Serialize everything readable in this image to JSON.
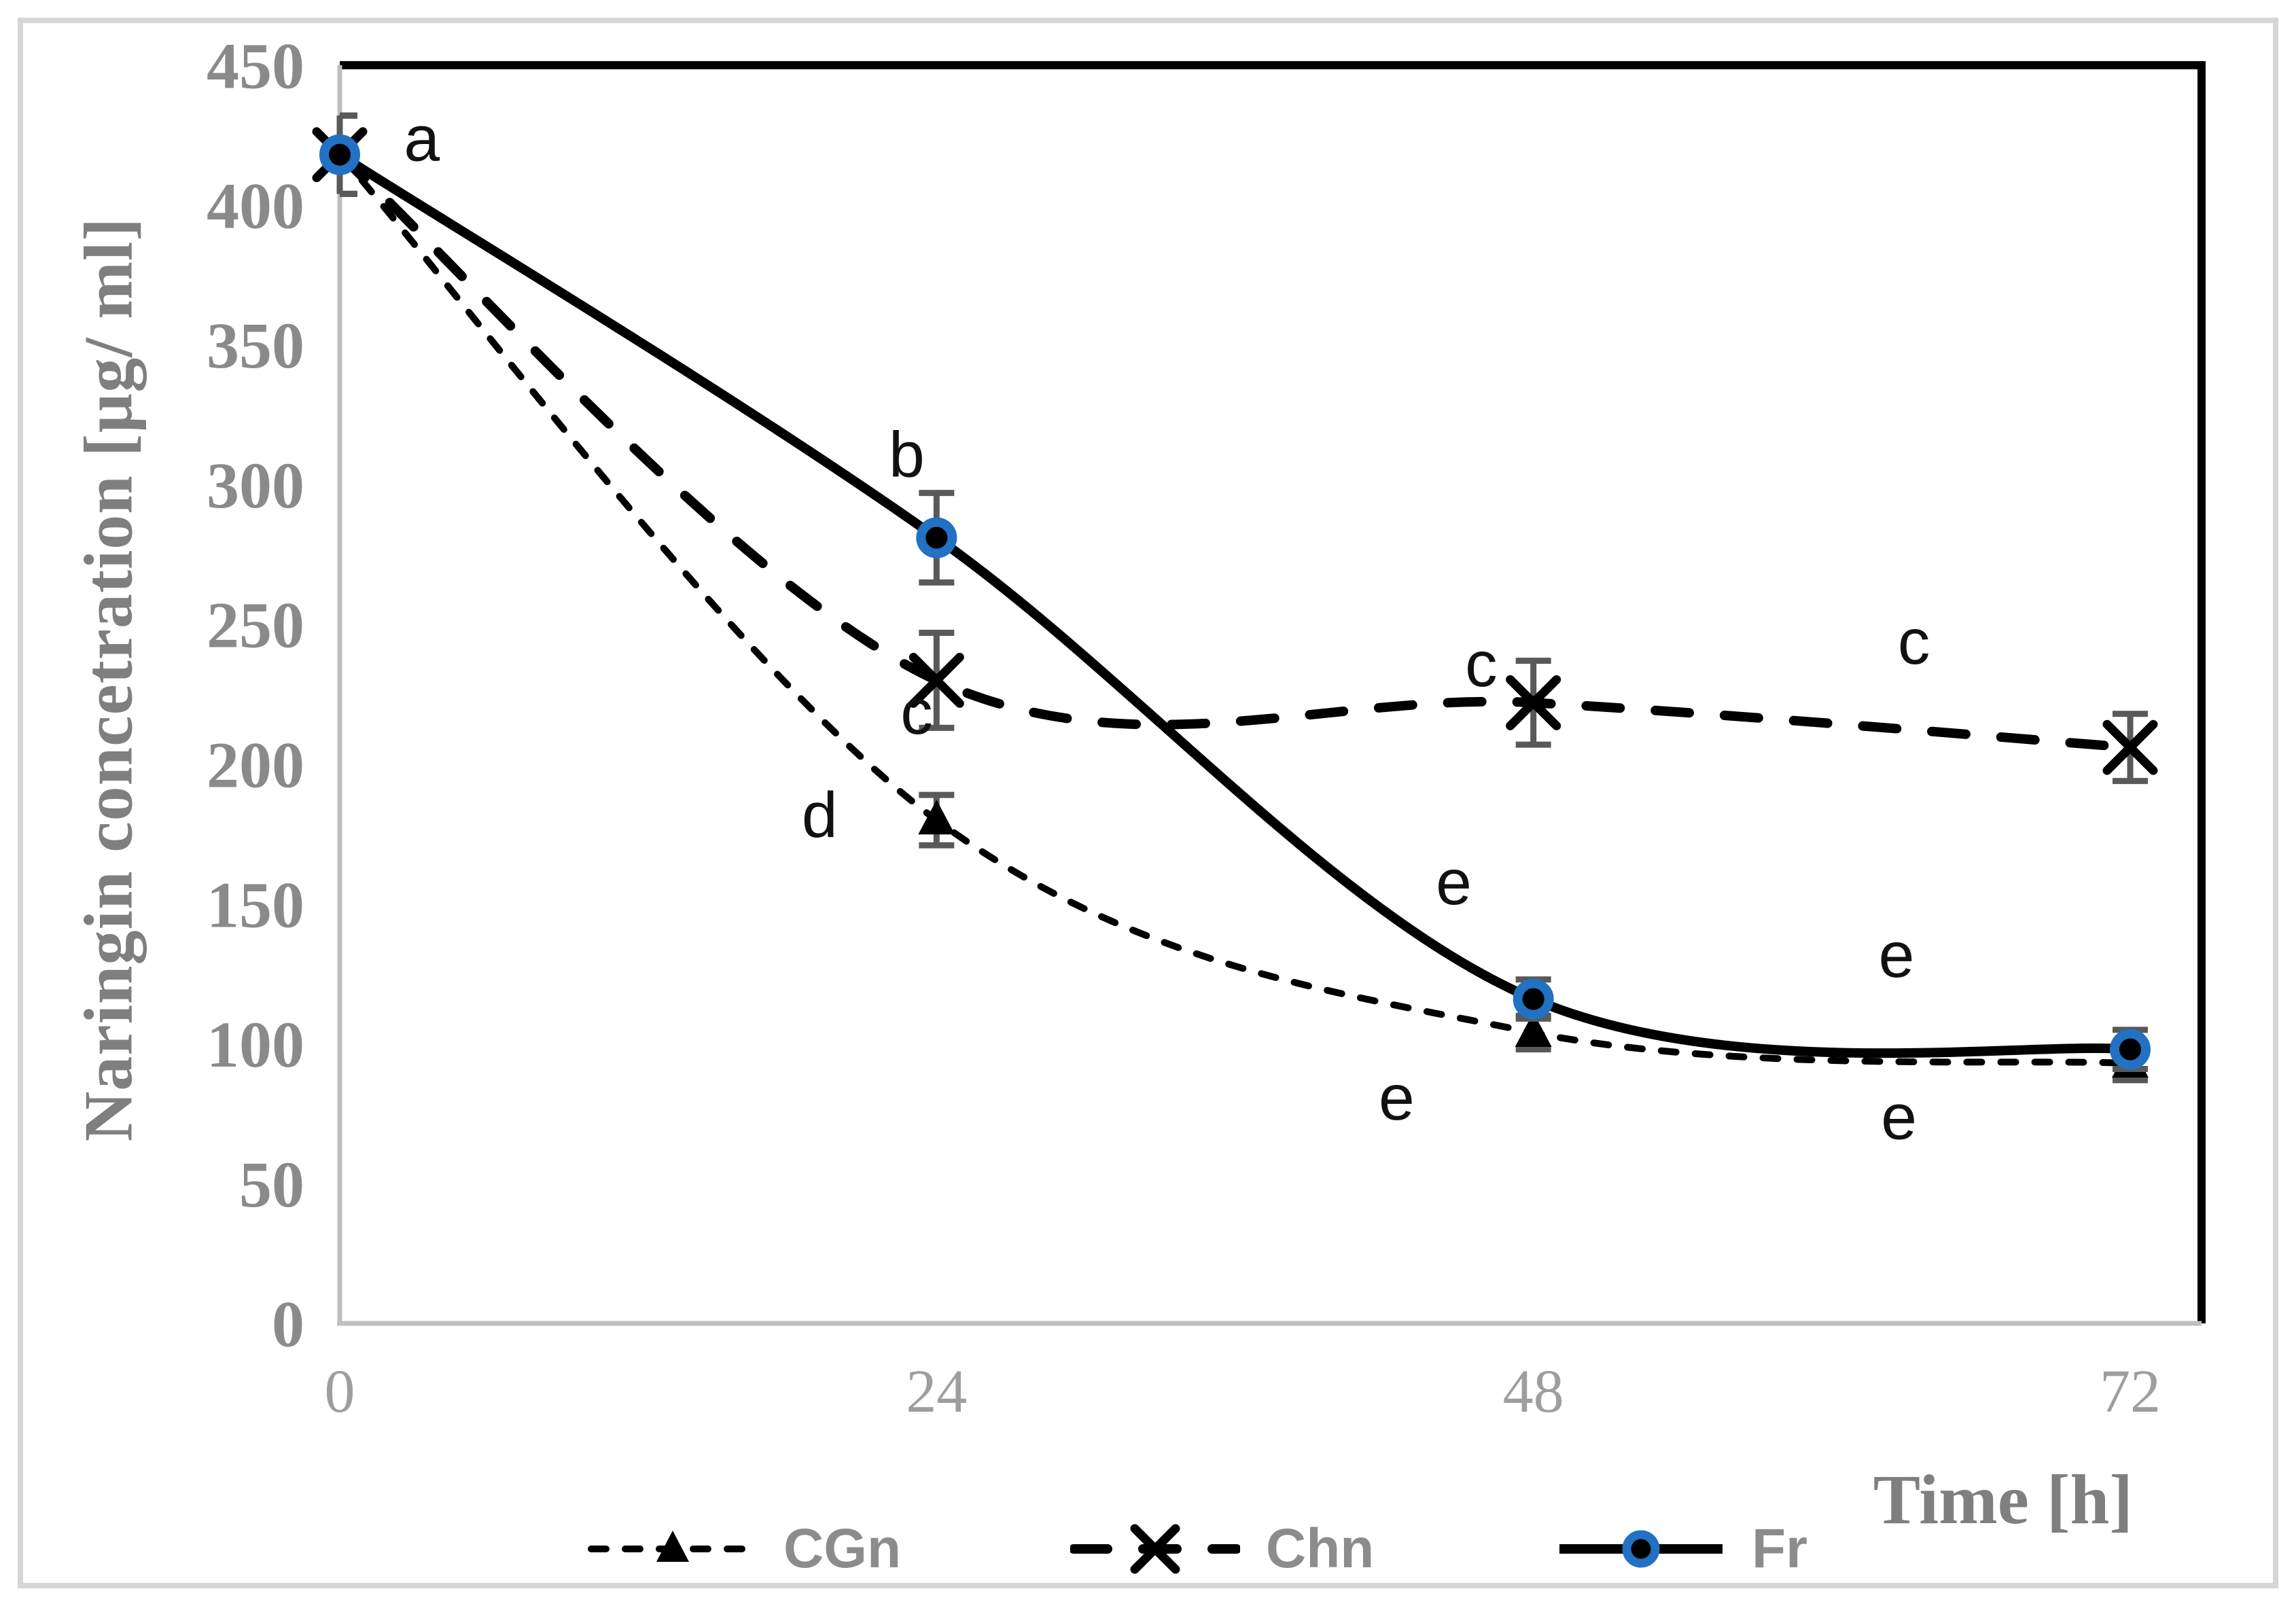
{
  "figure": {
    "background": "#ffffff",
    "outer_border_color": "#d6d6d6"
  },
  "chart_data": {
    "type": "line",
    "title": "",
    "xlabel": "Time [h]",
    "ylabel": "Naringin concetration [µg/ ml]",
    "x": [
      0,
      24,
      48,
      72
    ],
    "x_tick_labels": [
      "0",
      "24",
      "48",
      "72"
    ],
    "y_ticks": [
      0,
      50,
      100,
      150,
      200,
      250,
      300,
      350,
      400,
      450
    ],
    "ylim": [
      0,
      450
    ],
    "xlim": [
      0,
      75
    ],
    "grid": false,
    "legend_position": "bottom",
    "series": [
      {
        "name": "CGn",
        "values": [
          418,
          180,
          104,
          93
        ],
        "errors": [
          14,
          9,
          6,
          6
        ],
        "line_style": "dotted",
        "marker": "triangle",
        "color": "#000000"
      },
      {
        "name": "Chn",
        "values": [
          418,
          230,
          222,
          206
        ],
        "errors": [
          14,
          17,
          15,
          12
        ],
        "line_style": "dashed",
        "marker": "x",
        "color": "#000000"
      },
      {
        "name": "Fr",
        "values": [
          418,
          281,
          116,
          98
        ],
        "errors": [
          14,
          16,
          7,
          7
        ],
        "line_style": "solid",
        "marker": "circle",
        "color": "#000000",
        "marker_ring_color": "#2271c3"
      }
    ],
    "annotations": [
      {
        "text": "a",
        "t": 3.3,
        "v": 424
      },
      {
        "text": "b",
        "t": 22.8,
        "v": 311
      },
      {
        "text": "c",
        "t": 23.2,
        "v": 219
      },
      {
        "text": "d",
        "t": 19.3,
        "v": 182
      },
      {
        "text": "c",
        "t": 45.9,
        "v": 236
      },
      {
        "text": "e",
        "t": 44.8,
        "v": 158
      },
      {
        "text": "e",
        "t": 42.5,
        "v": 81
      },
      {
        "text": "c",
        "t": 63.3,
        "v": 244
      },
      {
        "text": "e",
        "t": 62.6,
        "v": 132
      },
      {
        "text": "e",
        "t": 62.7,
        "v": 74
      }
    ]
  },
  "styles": {
    "plot_border_color": "#000000",
    "axis_line_color": "#bfbfbf",
    "error_bar_color": "#595959",
    "y_tick_color": "#8a8a8a",
    "x_tick_color": "#9e9e9e",
    "annotation_color": "#111111",
    "legend_text_color": "#8c8c8c"
  }
}
